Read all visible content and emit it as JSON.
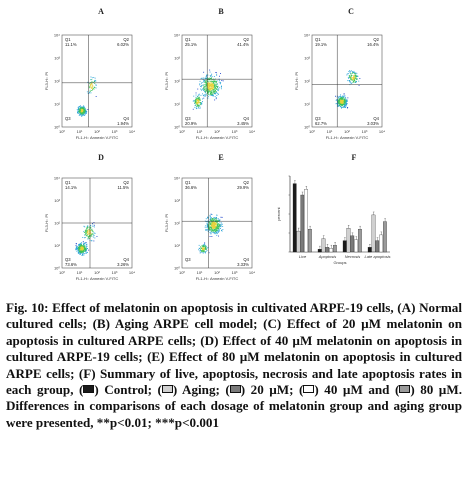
{
  "panels": [
    {
      "letter": "A",
      "q": [
        "Q1",
        "Q2",
        "Q3",
        "Q4"
      ],
      "v": [
        "11.1%",
        "6.02%",
        "",
        "1.94%"
      ]
    },
    {
      "letter": "B",
      "q": [
        "Q1",
        "Q2",
        "Q3",
        "Q4"
      ],
      "v": [
        "25.1%",
        "41.4%",
        "20.9%",
        "3.45%"
      ]
    },
    {
      "letter": "C",
      "q": [
        "Q1",
        "Q2",
        "Q3",
        "Q4"
      ],
      "v": [
        "19.1%",
        "16.4%",
        "62.7%",
        "3.03%"
      ]
    },
    {
      "letter": "D",
      "q": [
        "Q1",
        "Q2",
        "Q3",
        "Q4"
      ],
      "v": [
        "14.1%",
        "11.5%",
        "73.6%",
        "3.26%"
      ]
    },
    {
      "letter": "E",
      "q": [
        "Q1",
        "Q2",
        "Q3",
        "Q4"
      ],
      "v": [
        "36.6%",
        "29.9%",
        "",
        "3.33%"
      ]
    }
  ],
  "axes": {
    "x": "FL1-H:: Annexin V-FITC",
    "y": "FL3-H:: PI"
  },
  "ticks": [
    "10⁰",
    "10¹",
    "10²",
    "10³",
    "10⁴"
  ],
  "panel_f": {
    "letter": "F",
    "groups": [
      "Live",
      "Apoptosis",
      "Necrosis",
      "Late apoptosis"
    ],
    "xlabel": "Groups",
    "ylabel": "percent",
    "series_colors": [
      "#1a1a1a",
      "#d0d0d0",
      "#7a7a7a",
      "#ffffff",
      "#9a9a9a"
    ],
    "values": [
      [
        72,
        22,
        60,
        66,
        24
      ],
      [
        3,
        14,
        5,
        4,
        7
      ],
      [
        12,
        25,
        17,
        13,
        24
      ],
      [
        5,
        39,
        12,
        18,
        32
      ]
    ]
  },
  "caption": {
    "line1": "Fig. 10: Effect of melatonin on apoptosis in cultivated ARPE-19 cells, (A) Normal cultured cells; (B) Aging ARPE cell model; (C) Effect of 20 µM melatonin on apoptosis in cultured ARPE cells; (D) Effect of 40 µM melatonin on apoptosis in cultured ARPE-19 cells; (E) Effect of 80 µM melatonin on apoptosis in cultured ARPE cells; (F) Summary of live, apoptosis, necrosis and late apoptosis rates in each group, (",
    "l_control": ") Control; (",
    "l_aging": ") Aging; (",
    "l_20": ") 20 µM; (",
    "l_40": ") 40 µM and (",
    "l_80": ") 80 µM. Differences in comparisons of each dosage of melatonin group and aging group were presented, **p<0.01; ***p<0.001"
  }
}
